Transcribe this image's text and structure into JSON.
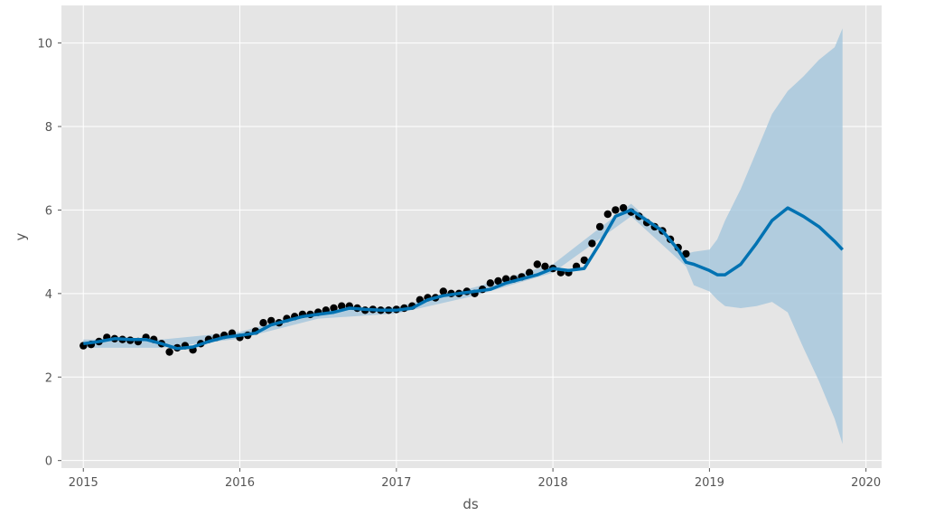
{
  "chart_data": {
    "type": "line",
    "title": "",
    "xlabel": "ds",
    "ylabel": "y",
    "xlim": [
      2014.86,
      2020.1
    ],
    "ylim": [
      -0.18,
      10.9
    ],
    "x_ticks": [
      2015,
      2016,
      2017,
      2018,
      2019,
      2020
    ],
    "x_tick_labels": [
      "2015",
      "2016",
      "2017",
      "2018",
      "2019",
      "2020"
    ],
    "y_ticks": [
      0,
      2,
      4,
      6,
      8,
      10
    ],
    "y_tick_labels": [
      "0",
      "2",
      "4",
      "6",
      "8",
      "10"
    ],
    "grid": true,
    "legend": "none",
    "colors": {
      "plot_background": "#e5e5e5",
      "grid": "#ffffff",
      "observed": "#000000",
      "forecast": "#0072b2",
      "interval": "#9fc3db"
    },
    "series": [
      {
        "role": "observed",
        "kind": "scatter",
        "x": [
          2015.0,
          2015.05,
          2015.1,
          2015.15,
          2015.2,
          2015.25,
          2015.3,
          2015.35,
          2015.4,
          2015.45,
          2015.5,
          2015.55,
          2015.6,
          2015.65,
          2015.7,
          2015.75,
          2015.8,
          2015.85,
          2015.9,
          2015.95,
          2016.0,
          2016.05,
          2016.1,
          2016.15,
          2016.2,
          2016.25,
          2016.3,
          2016.35,
          2016.4,
          2016.45,
          2016.5,
          2016.55,
          2016.6,
          2016.65,
          2016.7,
          2016.75,
          2016.8,
          2016.85,
          2016.9,
          2016.95,
          2017.0,
          2017.05,
          2017.1,
          2017.15,
          2017.2,
          2017.25,
          2017.3,
          2017.35,
          2017.4,
          2017.45,
          2017.5,
          2017.55,
          2017.6,
          2017.65,
          2017.7,
          2017.75,
          2017.8,
          2017.85,
          2017.9,
          2017.95,
          2018.0,
          2018.05,
          2018.1,
          2018.15,
          2018.2,
          2018.25,
          2018.3,
          2018.35,
          2018.4,
          2018.45,
          2018.5,
          2018.55,
          2018.6,
          2018.65,
          2018.7,
          2018.75,
          2018.8,
          2018.85
        ],
        "y": [
          2.75,
          2.78,
          2.85,
          2.95,
          2.92,
          2.9,
          2.88,
          2.85,
          2.95,
          2.9,
          2.8,
          2.6,
          2.7,
          2.75,
          2.65,
          2.8,
          2.9,
          2.95,
          3.0,
          3.05,
          2.95,
          3.0,
          3.1,
          3.3,
          3.35,
          3.3,
          3.4,
          3.45,
          3.5,
          3.5,
          3.55,
          3.6,
          3.65,
          3.7,
          3.7,
          3.65,
          3.6,
          3.62,
          3.6,
          3.6,
          3.62,
          3.65,
          3.7,
          3.85,
          3.9,
          3.9,
          4.05,
          4.0,
          4.0,
          4.05,
          4.0,
          4.1,
          4.25,
          4.3,
          4.35,
          4.35,
          4.4,
          4.5,
          4.7,
          4.65,
          4.6,
          4.5,
          4.5,
          4.65,
          4.8,
          5.2,
          5.6,
          5.9,
          6.0,
          6.05,
          5.95,
          5.85,
          5.7,
          5.6,
          5.5,
          5.3,
          5.1,
          4.95
        ]
      },
      {
        "role": "yhat",
        "kind": "line",
        "x": [
          2015.0,
          2015.1,
          2015.2,
          2015.3,
          2015.4,
          2015.5,
          2015.6,
          2015.7,
          2015.8,
          2015.9,
          2016.0,
          2016.1,
          2016.2,
          2016.3,
          2016.4,
          2016.5,
          2016.6,
          2016.7,
          2016.8,
          2016.9,
          2017.0,
          2017.1,
          2017.2,
          2017.3,
          2017.4,
          2017.5,
          2017.6,
          2017.7,
          2017.8,
          2017.9,
          2018.0,
          2018.1,
          2018.2,
          2018.3,
          2018.4,
          2018.5,
          2018.6,
          2018.7,
          2018.8,
          2018.85,
          2018.9,
          2019.0,
          2019.05,
          2019.1,
          2019.2,
          2019.3,
          2019.4,
          2019.5,
          2019.6,
          2019.7,
          2019.8,
          2019.85
        ],
        "y": [
          2.8,
          2.85,
          2.92,
          2.9,
          2.9,
          2.8,
          2.68,
          2.72,
          2.85,
          2.95,
          3.0,
          3.05,
          3.25,
          3.35,
          3.45,
          3.5,
          3.55,
          3.65,
          3.62,
          3.6,
          3.6,
          3.65,
          3.85,
          3.95,
          4.0,
          4.05,
          4.1,
          4.25,
          4.35,
          4.45,
          4.6,
          4.55,
          4.6,
          5.2,
          5.85,
          6.0,
          5.75,
          5.5,
          5.05,
          4.75,
          4.7,
          4.55,
          4.45,
          4.45,
          4.7,
          5.2,
          5.75,
          6.05,
          5.85,
          5.6,
          5.25,
          5.05
        ]
      },
      {
        "role": "interval",
        "kind": "area",
        "x": [
          2015.0,
          2015.5,
          2016.0,
          2016.5,
          2017.0,
          2017.5,
          2018.0,
          2018.5,
          2018.85,
          2018.9,
          2019.0,
          2019.05,
          2019.1,
          2019.2,
          2019.3,
          2019.4,
          2019.5,
          2019.6,
          2019.7,
          2019.8,
          2019.85
        ],
        "lower": [
          2.7,
          2.7,
          2.92,
          3.4,
          3.52,
          3.95,
          4.5,
          5.85,
          4.65,
          4.2,
          4.05,
          3.85,
          3.7,
          3.65,
          3.7,
          3.8,
          3.55,
          2.7,
          1.9,
          1.0,
          0.4
        ],
        "upper": [
          2.9,
          2.9,
          3.08,
          3.6,
          3.68,
          4.15,
          4.7,
          6.15,
          4.95,
          5.0,
          5.05,
          5.3,
          5.75,
          6.5,
          7.4,
          8.3,
          8.85,
          9.2,
          9.6,
          9.9,
          10.35
        ]
      }
    ]
  }
}
